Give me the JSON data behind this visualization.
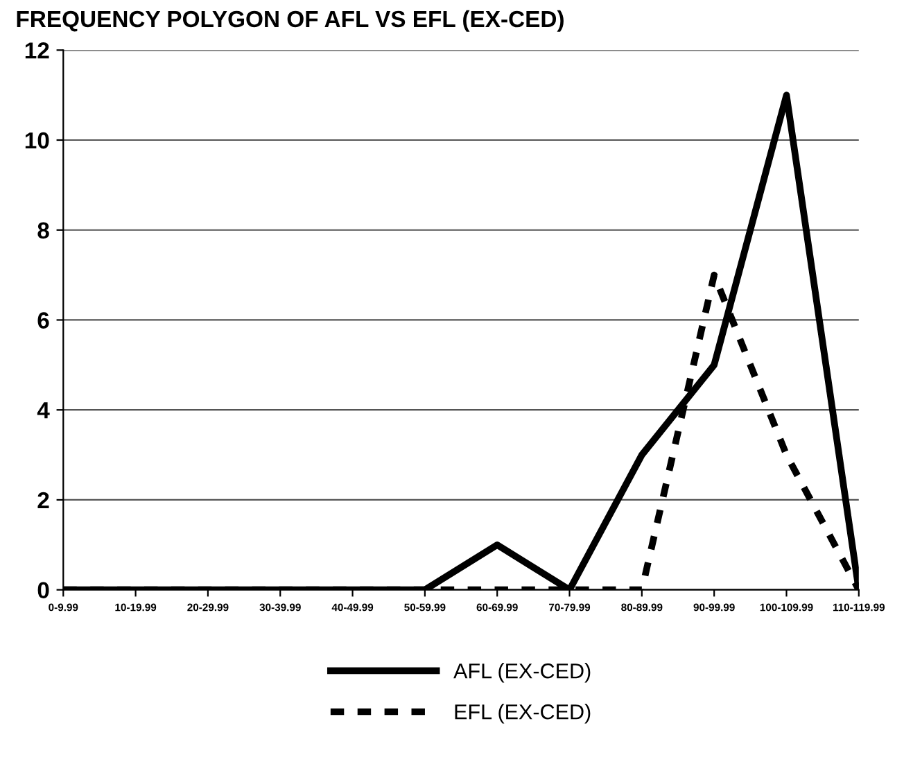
{
  "chart_data": {
    "type": "line",
    "title": "FREQUENCY POLYGON OF AFL VS EFL (EX-CED)",
    "categories": [
      "0-9.99",
      "10-19.99",
      "20-29.99",
      "30-39.99",
      "40-49.99",
      "50-59.99",
      "60-69.99",
      "70-79.99",
      "80-89.99",
      "90-99.99",
      "100-109.99",
      "110-119.99"
    ],
    "series": [
      {
        "name": "AFL (EX-CED)",
        "color": "#000000",
        "line_style": "solid",
        "values": [
          0,
          0,
          0,
          0,
          0,
          0,
          1,
          0,
          3,
          5,
          11,
          0
        ]
      },
      {
        "name": "EFL (EX-CED)",
        "color": "#000000",
        "line_style": "dashed",
        "values": [
          0,
          0,
          0,
          0,
          0,
          0,
          0,
          0,
          0,
          7,
          3,
          0
        ]
      }
    ],
    "ylim": [
      0,
      12
    ],
    "yticks": [
      0,
      2,
      4,
      6,
      8,
      10,
      12
    ],
    "grid": "y",
    "legend": "bottom",
    "marker": "none"
  }
}
